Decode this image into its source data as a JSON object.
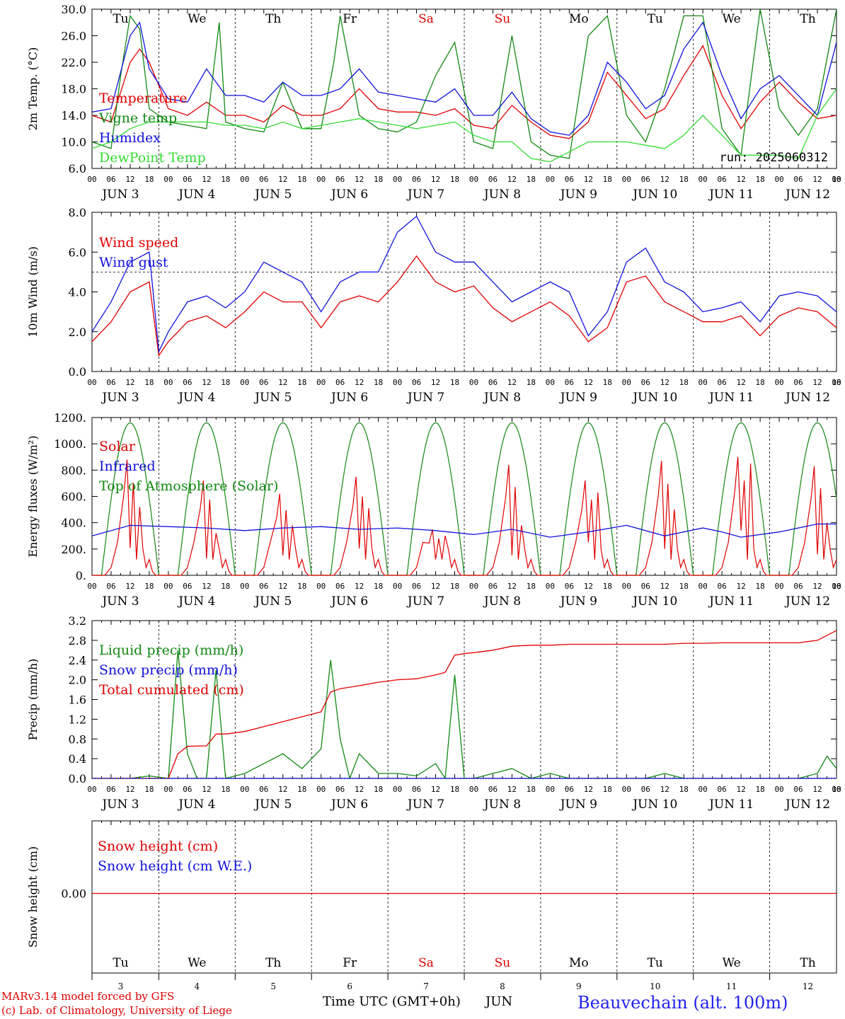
{
  "footer": {
    "credit_line1": "MARv3.14 model forced by GFS",
    "credit_line2": "(c) Lab. of Climatology, University of Liege",
    "time_label": "Time UTC (GMT+0h)",
    "month": "JUN",
    "station": "Beauvechain (alt. 100m)"
  },
  "colors": {
    "red": "#e00000",
    "green": "#118811",
    "blue": "#1111dd",
    "lightgreen": "#33dd33",
    "weekend": "#e00000"
  },
  "days": {
    "weekday_labels": [
      "Tu",
      "We",
      "Th",
      "Fr",
      "Sa",
      "Su",
      "Mo",
      "Tu",
      "We",
      "Th"
    ],
    "weekend_index": [
      4,
      5
    ],
    "day_numbers": [
      "3",
      "4",
      "5",
      "6",
      "7",
      "8",
      "9",
      "10",
      "11",
      "12"
    ],
    "date_labels": [
      "JUN  3",
      "JUN  4",
      "JUN  5",
      "JUN  6",
      "JUN  7",
      "JUN  8",
      "JUN  9",
      "JUN 10",
      "JUN 11",
      "JUN 12"
    ],
    "hour_ticks": [
      "00",
      "06",
      "12",
      "18"
    ],
    "final_hour_tick": "00"
  },
  "chart_data": [
    {
      "type": "line",
      "ylabel": "2m Temp. (°C)",
      "ylim": [
        6,
        30
      ],
      "yticks": [
        "6.0",
        "10.0",
        "14.0",
        "18.0",
        "22.0",
        "26.0",
        "30.0"
      ],
      "annotation": "run: 2025060312",
      "x_unit": "hours since JUN 3 00 UTC",
      "series": [
        {
          "name": "Temperature",
          "color": "#e00000",
          "x": [
            0,
            6,
            12,
            15,
            18,
            24,
            30,
            36,
            42,
            48,
            54,
            60,
            66,
            72,
            78,
            84,
            90,
            96,
            102,
            108,
            114,
            120,
            126,
            132,
            138,
            144,
            150,
            156,
            162,
            168,
            174,
            180,
            186,
            192,
            198,
            204,
            210,
            216,
            222,
            228,
            234
          ],
          "y": [
            14,
            13,
            22,
            24,
            22,
            15,
            14,
            16,
            14,
            14,
            13,
            15.5,
            14,
            14,
            15,
            18,
            15,
            14.5,
            14.5,
            14,
            15,
            12.5,
            12,
            15.5,
            13,
            11,
            10.5,
            13,
            20.5,
            17,
            13.5,
            15,
            20,
            24.5,
            17,
            12,
            16,
            19,
            16,
            13.5,
            14
          ]
        },
        {
          "name": "Vigne temp",
          "color": "#118811",
          "x": [
            0,
            6,
            9,
            12,
            15,
            18,
            24,
            30,
            36,
            40,
            42,
            48,
            54,
            60,
            66,
            72,
            76,
            78,
            84,
            90,
            96,
            102,
            108,
            114,
            120,
            126,
            132,
            138,
            144,
            150,
            156,
            162,
            168,
            174,
            180,
            186,
            192,
            198,
            204,
            210,
            216,
            222,
            228,
            234
          ],
          "y": [
            10,
            9,
            20,
            29,
            27,
            15,
            13,
            12.5,
            12,
            28,
            13,
            12,
            11.5,
            19,
            12,
            12,
            22,
            29,
            14,
            12,
            11.5,
            13,
            20,
            25,
            10,
            9,
            26,
            10,
            8,
            7.5,
            26,
            29,
            14,
            10,
            18,
            29,
            29,
            12,
            8,
            30,
            15,
            11,
            15,
            30
          ]
        },
        {
          "name": "Humidex",
          "color": "#1111dd",
          "x": [
            0,
            6,
            12,
            15,
            18,
            24,
            30,
            36,
            42,
            48,
            54,
            60,
            66,
            72,
            78,
            84,
            90,
            96,
            102,
            108,
            114,
            120,
            126,
            132,
            138,
            144,
            150,
            156,
            162,
            168,
            174,
            180,
            186,
            192,
            198,
            204,
            210,
            216,
            222,
            228,
            234
          ],
          "y": [
            14.5,
            15,
            26,
            28,
            21,
            16.5,
            16,
            21,
            17,
            17,
            16,
            19,
            17,
            17,
            18,
            21,
            17.5,
            17,
            16.5,
            16,
            18,
            14,
            14,
            17.5,
            13.5,
            11.5,
            11,
            14,
            22,
            19,
            15,
            17,
            24,
            28,
            20,
            13.5,
            18,
            20,
            17,
            14,
            25
          ]
        },
        {
          "name": "DewPoint Temp",
          "color": "#33dd33",
          "x": [
            0,
            6,
            12,
            18,
            24,
            30,
            36,
            42,
            48,
            54,
            60,
            66,
            72,
            78,
            84,
            90,
            96,
            102,
            108,
            114,
            120,
            126,
            132,
            138,
            144,
            150,
            156,
            162,
            168,
            174,
            180,
            186,
            192,
            198,
            204,
            210,
            216,
            222,
            228,
            234
          ],
          "y": [
            9,
            10,
            12,
            13,
            13,
            13,
            13,
            12.5,
            12.5,
            12,
            13,
            12,
            12.5,
            13,
            13.5,
            13,
            12.5,
            12,
            12.5,
            13,
            11,
            10,
            10,
            7.5,
            7,
            8.5,
            10,
            10,
            10,
            9.5,
            9,
            11,
            14,
            11,
            8,
            8,
            8,
            7.5,
            14,
            18
          ]
        }
      ]
    },
    {
      "type": "line",
      "ylabel": "10m Wind (m/s)",
      "ylim": [
        0,
        8
      ],
      "yticks": [
        "0.0",
        "2.0",
        "4.0",
        "6.0",
        "8.0"
      ],
      "reference_line": 5,
      "x_unit": "hours since JUN 3 00 UTC",
      "series": [
        {
          "name": "Wind speed",
          "color": "#e00000",
          "x": [
            0,
            6,
            12,
            18,
            21,
            24,
            30,
            36,
            42,
            48,
            54,
            60,
            66,
            72,
            78,
            84,
            90,
            96,
            102,
            108,
            114,
            120,
            126,
            132,
            138,
            144,
            150,
            156,
            162,
            168,
            174,
            180,
            186,
            192,
            198,
            204,
            210,
            216,
            222,
            228,
            234
          ],
          "y": [
            1.5,
            2.5,
            4,
            4.5,
            0.8,
            1.5,
            2.5,
            2.8,
            2.2,
            3,
            4,
            3.5,
            3.5,
            2.2,
            3.5,
            3.8,
            3.5,
            4.5,
            5.8,
            4.5,
            4,
            4.3,
            3.2,
            2.5,
            3,
            3.5,
            2.8,
            1.5,
            2.2,
            4.5,
            4.8,
            3.5,
            3,
            2.5,
            2.5,
            2.8,
            1.8,
            2.8,
            3.2,
            3,
            2.2
          ]
        },
        {
          "name": "Wind gust",
          "color": "#1111dd",
          "x": [
            0,
            6,
            12,
            18,
            21,
            24,
            30,
            36,
            42,
            48,
            54,
            60,
            66,
            72,
            78,
            84,
            90,
            96,
            102,
            108,
            114,
            120,
            126,
            132,
            138,
            144,
            150,
            156,
            162,
            168,
            174,
            180,
            186,
            192,
            198,
            204,
            210,
            216,
            222,
            228,
            234
          ],
          "y": [
            2,
            3.5,
            5.5,
            6,
            1,
            2,
            3.5,
            3.8,
            3.2,
            4,
            5.5,
            5,
            4.5,
            3,
            4.5,
            5,
            5,
            7,
            7.8,
            6,
            5.5,
            5.5,
            4.5,
            3.5,
            4,
            4.5,
            4,
            1.8,
            3,
            5.5,
            6.2,
            4.5,
            4,
            3,
            3.2,
            3.5,
            2.5,
            3.8,
            4,
            3.8,
            3
          ]
        }
      ]
    },
    {
      "type": "line",
      "ylabel": "Energy fluxes (W/m²)",
      "ylim": [
        0,
        1200
      ],
      "yticks": [
        "0.",
        "200.",
        "400.",
        "600.",
        "800.",
        "1000.",
        "1200."
      ],
      "x_unit": "hours since JUN 3 00 UTC",
      "series": [
        {
          "name": "Solar",
          "color": "#e00000",
          "daily_peaks": [
            880,
            720,
            620,
            750,
            350,
            840,
            720,
            870,
            900,
            830
          ],
          "daily_secondary": [
            520,
            320,
            380,
            510,
            300,
            380,
            630,
            500,
            850,
            400
          ]
        },
        {
          "name": "Infrared",
          "color": "#1111dd",
          "x": [
            0,
            12,
            24,
            36,
            48,
            60,
            72,
            84,
            96,
            108,
            120,
            132,
            144,
            156,
            168,
            180,
            192,
            198,
            204,
            216,
            228,
            234
          ],
          "y": [
            300,
            380,
            370,
            360,
            340,
            360,
            370,
            350,
            360,
            340,
            310,
            350,
            290,
            330,
            380,
            300,
            360,
            330,
            290,
            330,
            390,
            390
          ]
        },
        {
          "name": "Top of Atmosphere (Solar)",
          "color": "#118811",
          "daily_peak": 1160
        }
      ]
    },
    {
      "type": "line",
      "ylabel": "Precip (mm/h)",
      "ylim": [
        0,
        3.2
      ],
      "yticks": [
        "0.0",
        "0.4",
        "0.8",
        "1.2",
        "1.6",
        "2.0",
        "2.4",
        "2.8",
        "3.2"
      ],
      "x_unit": "hours since JUN 3 00 UTC",
      "series": [
        {
          "name": "Liquid precip (mm/h)",
          "color": "#118811",
          "x": [
            0,
            12,
            18,
            24,
            27,
            30,
            33,
            36,
            39,
            42,
            48,
            54,
            60,
            66,
            72,
            75,
            78,
            81,
            84,
            90,
            96,
            102,
            108,
            111,
            114,
            117,
            120,
            126,
            132,
            138,
            144,
            150,
            156,
            162,
            168,
            174,
            180,
            186,
            192,
            198,
            204,
            210,
            216,
            222,
            228,
            231,
            234
          ],
          "y": [
            0,
            0,
            0.05,
            0,
            2.6,
            0.5,
            0,
            0,
            2.2,
            0,
            0.1,
            0.3,
            0.5,
            0.2,
            0.6,
            2.4,
            0.8,
            0,
            0.5,
            0.1,
            0.1,
            0.05,
            0.3,
            0,
            2.1,
            0,
            0,
            0.1,
            0.2,
            0,
            0.1,
            0,
            0,
            0,
            0,
            0,
            0.1,
            0,
            0,
            0,
            0,
            0,
            0,
            0,
            0.1,
            0.45,
            0.2
          ]
        },
        {
          "name": "Snow precip (mm/h)",
          "color": "#1111dd",
          "x": [
            0,
            234
          ],
          "y": [
            0,
            0
          ]
        },
        {
          "name": "Total cumulated (cm)",
          "color": "#e00000",
          "x": [
            0,
            24,
            27,
            30,
            36,
            39,
            42,
            48,
            54,
            60,
            66,
            72,
            75,
            78,
            84,
            90,
            96,
            102,
            108,
            111,
            114,
            117,
            120,
            126,
            132,
            138,
            144,
            150,
            156,
            162,
            168,
            174,
            180,
            186,
            192,
            198,
            204,
            210,
            216,
            222,
            228,
            231,
            234
          ],
          "y": [
            0,
            0,
            0.5,
            0.65,
            0.66,
            0.9,
            0.9,
            0.95,
            1.05,
            1.15,
            1.25,
            1.35,
            1.75,
            1.82,
            1.88,
            1.95,
            2,
            2.02,
            2.1,
            2.15,
            2.5,
            2.53,
            2.55,
            2.6,
            2.68,
            2.7,
            2.7,
            2.72,
            2.72,
            2.72,
            2.72,
            2.72,
            2.72,
            2.74,
            2.74,
            2.75,
            2.75,
            2.75,
            2.75,
            2.75,
            2.8,
            2.9,
            3
          ]
        }
      ]
    },
    {
      "type": "line",
      "ylabel": "Snow height (cm)",
      "yticks": [
        "0.00"
      ],
      "x_unit": "hours since JUN 3 00 UTC",
      "series": [
        {
          "name": "Snow height (cm)",
          "color": "#e00000",
          "x": [
            0,
            234
          ],
          "y": [
            0,
            0
          ]
        },
        {
          "name": "Snow height (cm W.E.)",
          "color": "#1111dd",
          "x": [
            0,
            234
          ],
          "y": [
            0,
            0
          ]
        }
      ]
    }
  ]
}
